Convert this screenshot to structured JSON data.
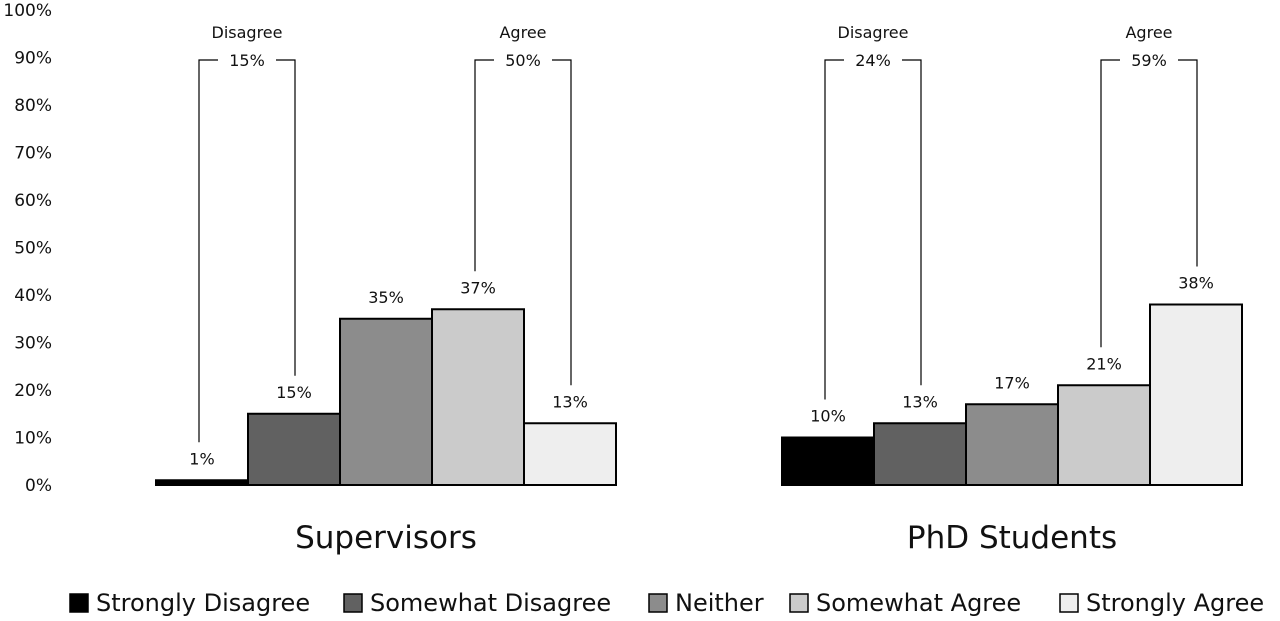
{
  "chart_data": {
    "type": "bar",
    "ylim": [
      0,
      100
    ],
    "yticks": [
      "0%",
      "10%",
      "20%",
      "30%",
      "40%",
      "50%",
      "60%",
      "70%",
      "80%",
      "90%",
      "100%"
    ],
    "legend_position": "bottom",
    "categories": [
      "Strongly Disagree",
      "Somewhat Disagree",
      "Neither",
      "Somewhat Agree",
      "Strongly Agree"
    ],
    "colors": [
      "#000000",
      "#616161",
      "#8c8c8c",
      "#cbcbcb",
      "#eeeeee"
    ],
    "groups": [
      {
        "name": "Supervisors",
        "values": [
          1,
          15,
          35,
          37,
          13
        ],
        "value_labels": [
          "1%",
          "15%",
          "35%",
          "37%",
          "13%"
        ],
        "disagree": {
          "label": "Disagree",
          "value": "15%"
        },
        "agree": {
          "label": "Agree",
          "value": "50%"
        }
      },
      {
        "name": "PhD Students",
        "values": [
          10,
          13,
          17,
          21,
          38
        ],
        "value_labels": [
          "10%",
          "13%",
          "17%",
          "21%",
          "38%"
        ],
        "disagree": {
          "label": "Disagree",
          "value": "24%"
        },
        "agree": {
          "label": "Agree",
          "value": "59%"
        }
      }
    ]
  }
}
